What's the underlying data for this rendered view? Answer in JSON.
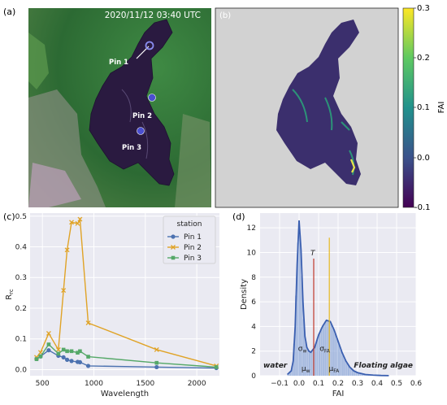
{
  "panel_labels": {
    "a": "(a)",
    "b": "(b)",
    "c": "(c)",
    "d": "(d)"
  },
  "panel_a": {
    "timestamp": "2020/11/12 03:40 UTC",
    "pins": [
      "Pin 1",
      "Pin 2",
      "Pin 3"
    ],
    "colors": {
      "land": "#2f6d35",
      "land_light": "#5c9a4e",
      "urban": "#c9a3c8",
      "lake": "#2a1a40",
      "pin": "#5a5bd8"
    }
  },
  "panel_b": {
    "colorbar": {
      "label": "FAI",
      "ticks": [
        "0.3",
        "0.2",
        "0.1",
        "0.0",
        "-0.1"
      ]
    },
    "colors": {
      "background": "#d2d2d2",
      "lake": "#3b2f6d",
      "bloom": "#2aa47a",
      "peak": "#e9e24b"
    }
  },
  "chart_data": [
    {
      "type": "line",
      "title": "",
      "xlabel": "Wavelength",
      "ylabel": "Rrc",
      "xlim": [
        380,
        2220
      ],
      "ylim": [
        -0.02,
        0.51
      ],
      "xticks": [
        500,
        1000,
        1500,
        2000
      ],
      "yticks": [
        0.0,
        0.1,
        0.2,
        0.3,
        0.4,
        0.5
      ],
      "legend": {
        "title": "station",
        "position": "top-right"
      },
      "x": [
        443,
        482,
        561,
        655,
        705,
        740,
        783,
        842,
        865,
        945,
        1610,
        2190
      ],
      "series": [
        {
          "name": "Pin 1",
          "color": "#4c72b0",
          "marker": "o",
          "values": [
            0.035,
            0.043,
            0.063,
            0.045,
            0.04,
            0.032,
            0.028,
            0.025,
            0.024,
            0.012,
            0.008,
            0.005
          ]
        },
        {
          "name": "Pin 2",
          "color": "#e0a326",
          "marker": "x",
          "values": [
            0.04,
            0.056,
            0.118,
            0.065,
            0.258,
            0.39,
            0.48,
            0.476,
            0.49,
            0.152,
            0.065,
            0.012
          ]
        },
        {
          "name": "Pin 3",
          "color": "#55a868",
          "marker": "s",
          "values": [
            0.034,
            0.043,
            0.082,
            0.052,
            0.065,
            0.06,
            0.06,
            0.055,
            0.06,
            0.042,
            0.022,
            0.008
          ]
        }
      ]
    },
    {
      "type": "area",
      "title": "",
      "xlabel": "FAI",
      "ylabel": "Density",
      "xlim": [
        -0.2,
        0.6
      ],
      "ylim": [
        0,
        13.2
      ],
      "xticks": [
        "−0.1",
        "0.0",
        "0.1",
        "0.2",
        "0.3",
        "0.4",
        "0.5",
        "0.6"
      ],
      "yticks": [
        0,
        2,
        4,
        6,
        8,
        10,
        12
      ],
      "thresholds": [
        {
          "label": "T",
          "x": 0.075,
          "color": "#c0392b",
          "top": 9.5
        },
        {
          "label": "",
          "x": 0.155,
          "color": "#e6b820",
          "top": 11.2
        }
      ],
      "annotations": {
        "water": "water",
        "floating_algae": "Floating algae",
        "sigma_w": "σw",
        "sigma_fa": "σFA",
        "mu_w": "μw",
        "mu_fa": "μFA"
      },
      "kde": {
        "x": [
          -0.06,
          -0.04,
          -0.03,
          -0.02,
          -0.01,
          0.0,
          0.01,
          0.02,
          0.03,
          0.04,
          0.05,
          0.06,
          0.07,
          0.08,
          0.09,
          0.1,
          0.12,
          0.14,
          0.16,
          0.18,
          0.2,
          0.22,
          0.24,
          0.26,
          0.28,
          0.3,
          0.34,
          0.38,
          0.42,
          0.46
        ],
        "y": [
          0.1,
          0.4,
          1.2,
          4.0,
          9.0,
          12.6,
          10.2,
          6.0,
          3.2,
          2.3,
          2.0,
          1.9,
          2.1,
          2.3,
          2.8,
          3.3,
          4.0,
          4.5,
          4.4,
          3.7,
          2.8,
          1.9,
          1.2,
          0.7,
          0.4,
          0.25,
          0.1,
          0.05,
          0.02,
          0.01
        ]
      }
    }
  ]
}
